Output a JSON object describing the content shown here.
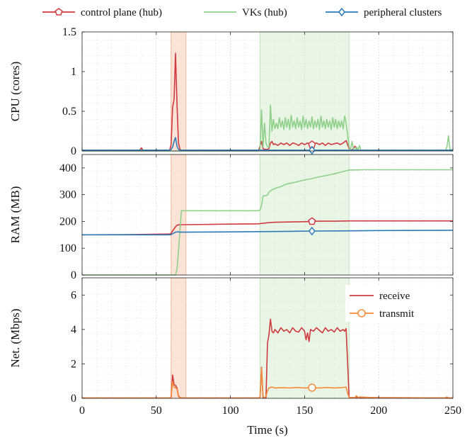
{
  "colors": {
    "control_plane": "#d0393f",
    "vks": "#8fd18a",
    "peripheral": "#2b7bb9",
    "receive": "#cf3a3f",
    "transmit": "#f48b3a",
    "band_orange": "#f7b08f",
    "band_green": "#bfe5b8"
  },
  "chart_data": [
    {
      "type": "line",
      "panel": "cpu",
      "ylabel": "CPU (cores)",
      "ylim": [
        0,
        1.5
      ],
      "yticks": [
        0,
        0.5,
        1,
        1.5
      ],
      "ytick_labels": [
        "0",
        "0.5",
        "1",
        "1.5"
      ],
      "xlim": [
        0,
        250
      ],
      "grid": true,
      "highlight_bands": [
        {
          "name": "orange",
          "x": [
            60,
            70
          ]
        },
        {
          "name": "green",
          "x": [
            120,
            180
          ]
        }
      ],
      "series": [
        {
          "name": "control plane (hub)",
          "marker": "pentagon",
          "marker_x": 155,
          "x": [
            0,
            39,
            40,
            41,
            59,
            60,
            61,
            62,
            63,
            64,
            65,
            66,
            67,
            68,
            70,
            100,
            119,
            120,
            121,
            122,
            123,
            124,
            125,
            126,
            127,
            128,
            129,
            130,
            132,
            134,
            136,
            138,
            140,
            142,
            144,
            146,
            148,
            150,
            152,
            154,
            156,
            158,
            160,
            162,
            164,
            166,
            168,
            170,
            172,
            174,
            176,
            178,
            179,
            180,
            182,
            184,
            186,
            200,
            250
          ],
          "y": [
            0.01,
            0.01,
            0.04,
            0.01,
            0.01,
            0.08,
            0.55,
            0.65,
            1.23,
            0.6,
            0.1,
            0.02,
            0.01,
            0.01,
            0.01,
            0.01,
            0.01,
            0.06,
            0.12,
            0.03,
            0.02,
            0.02,
            0.02,
            0.03,
            0.1,
            0.12,
            0.08,
            0.09,
            0.07,
            0.1,
            0.08,
            0.1,
            0.07,
            0.1,
            0.09,
            0.07,
            0.1,
            0.08,
            0.1,
            0.07,
            0.09,
            0.1,
            0.08,
            0.1,
            0.07,
            0.1,
            0.08,
            0.09,
            0.1,
            0.08,
            0.1,
            0.13,
            0.08,
            0.03,
            0.01,
            0.06,
            0.01,
            0.01,
            0.01
          ]
        },
        {
          "name": "VKs (hub)",
          "marker": "line",
          "x": [
            0,
            119,
            120,
            121,
            122,
            123,
            124,
            125,
            126,
            127,
            128,
            129,
            130,
            131,
            132,
            133,
            134,
            135,
            136,
            137,
            138,
            139,
            140,
            141,
            142,
            143,
            144,
            145,
            146,
            147,
            148,
            149,
            150,
            151,
            152,
            153,
            154,
            155,
            156,
            157,
            158,
            159,
            160,
            161,
            162,
            163,
            164,
            165,
            166,
            167,
            168,
            169,
            170,
            171,
            172,
            173,
            174,
            175,
            176,
            177,
            178,
            179,
            180,
            181,
            182,
            183,
            184,
            185,
            186,
            187,
            188,
            190,
            245,
            246,
            247,
            248,
            250
          ],
          "y": [
            0,
            0,
            0.02,
            0.52,
            0.05,
            0.35,
            0.1,
            0.05,
            0.05,
            0.58,
            0.25,
            0.4,
            0.28,
            0.35,
            0.28,
            0.42,
            0.3,
            0.38,
            0.27,
            0.42,
            0.3,
            0.4,
            0.27,
            0.45,
            0.3,
            0.38,
            0.28,
            0.42,
            0.3,
            0.38,
            0.27,
            0.44,
            0.3,
            0.4,
            0.28,
            0.38,
            0.3,
            0.43,
            0.28,
            0.38,
            0.3,
            0.4,
            0.27,
            0.44,
            0.3,
            0.38,
            0.28,
            0.4,
            0.3,
            0.38,
            0.27,
            0.42,
            0.3,
            0.4,
            0.28,
            0.38,
            0.3,
            0.38,
            0.28,
            0.44,
            0.35,
            0.2,
            0.05,
            0.02,
            0.12,
            0.02,
            0.01,
            0.05,
            0.01,
            0.07,
            0.01,
            0.01,
            0.01,
            0.05,
            0.19,
            0.02,
            0.01
          ]
        },
        {
          "name": "peripheral clusters",
          "marker": "diamond",
          "marker_x": 155,
          "x": [
            0,
            59,
            60,
            61,
            62,
            63,
            64,
            65,
            66,
            70,
            250
          ],
          "y": [
            0.01,
            0.01,
            0.02,
            0.05,
            0.12,
            0.17,
            0.06,
            0.02,
            0.01,
            0.01,
            0.01
          ]
        }
      ]
    },
    {
      "type": "line",
      "panel": "ram",
      "ylabel": "RAM (MB)",
      "ylim": [
        0,
        450
      ],
      "yticks": [
        0,
        100,
        200,
        300,
        400
      ],
      "ytick_labels": [
        "0",
        "100",
        "200",
        "300",
        "400"
      ],
      "xlim": [
        0,
        250
      ],
      "grid": true,
      "highlight_bands": [
        {
          "name": "orange",
          "x": [
            60,
            70
          ]
        },
        {
          "name": "green",
          "x": [
            120,
            180
          ]
        }
      ],
      "series": [
        {
          "name": "control plane (hub)",
          "marker": "pentagon",
          "marker_x": 155,
          "x": [
            0,
            30,
            59,
            60,
            61,
            62,
            63,
            64,
            66,
            70,
            100,
            119,
            120,
            125,
            130,
            140,
            150,
            155,
            160,
            170,
            180,
            200,
            250
          ],
          "y": [
            150,
            151,
            153,
            155,
            165,
            172,
            180,
            186,
            188,
            188,
            190,
            191,
            192,
            195,
            197,
            198,
            199,
            200,
            201,
            201,
            202,
            202,
            202
          ]
        },
        {
          "name": "VKs (hub)",
          "marker": "line",
          "x": [
            0,
            62,
            63,
            64,
            65,
            66,
            67,
            68,
            69,
            70,
            119,
            120,
            121,
            122,
            124,
            125,
            126,
            128,
            130,
            132,
            134,
            136,
            138,
            140,
            145,
            150,
            155,
            160,
            165,
            170,
            175,
            180,
            190,
            200,
            250
          ],
          "y": [
            0,
            0,
            0,
            20,
            90,
            165,
            240,
            240,
            240,
            240,
            240,
            243,
            258,
            295,
            297,
            298,
            310,
            318,
            323,
            327,
            330,
            335,
            340,
            342,
            348,
            355,
            360,
            367,
            372,
            378,
            385,
            392,
            393,
            393,
            393
          ]
        },
        {
          "name": "peripheral clusters",
          "marker": "diamond",
          "marker_x": 155,
          "x": [
            0,
            30,
            59,
            60,
            61,
            62,
            63,
            64,
            65,
            66,
            70,
            100,
            120,
            140,
            155,
            180,
            200,
            250
          ],
          "y": [
            150,
            150,
            150,
            151,
            154,
            157,
            160,
            161,
            161,
            160,
            160,
            161,
            162,
            163,
            164,
            165,
            166,
            167
          ]
        }
      ]
    },
    {
      "type": "line",
      "panel": "net",
      "ylabel": "Net. (Mbps)",
      "xlabel": "Time (s)",
      "ylim": [
        0,
        7
      ],
      "yticks": [
        0,
        2,
        4,
        6
      ],
      "ytick_labels": [
        "0",
        "2",
        "4",
        "6"
      ],
      "xlim": [
        0,
        250
      ],
      "xticks": [
        0,
        50,
        100,
        150,
        200,
        250
      ],
      "xtick_labels": [
        "0",
        "50",
        "100",
        "150",
        "200",
        "250"
      ],
      "grid": true,
      "legend_position": "top-right",
      "highlight_bands": [
        {
          "name": "orange",
          "x": [
            60,
            70
          ]
        },
        {
          "name": "green",
          "x": [
            120,
            180
          ]
        }
      ],
      "series": [
        {
          "name": "receive",
          "marker": "line",
          "x": [
            0,
            59,
            60,
            61,
            62,
            63,
            64,
            65,
            66,
            67,
            119,
            120,
            121,
            122,
            123,
            124,
            125,
            126,
            127,
            128,
            129,
            130,
            132,
            134,
            136,
            138,
            140,
            142,
            144,
            146,
            148,
            150,
            151,
            152,
            153,
            154,
            156,
            158,
            160,
            162,
            164,
            166,
            168,
            170,
            172,
            174,
            176,
            177,
            178,
            179,
            180,
            250
          ],
          "y": [
            0.02,
            0.02,
            0.05,
            1.35,
            0.8,
            0.75,
            0.6,
            0.15,
            0.05,
            0.02,
            0.02,
            0.05,
            1.8,
            0.05,
            0.02,
            0.05,
            3.2,
            3.7,
            4.6,
            3.9,
            3.8,
            4.0,
            3.8,
            4.1,
            3.9,
            4.0,
            3.8,
            4.1,
            3.9,
            3.85,
            4.1,
            3.9,
            3.4,
            3.8,
            3.3,
            4.0,
            3.9,
            4.1,
            3.95,
            3.8,
            4.1,
            3.9,
            4.0,
            3.85,
            4.1,
            3.9,
            4.0,
            3.9,
            4.05,
            2.1,
            0.05,
            0.02
          ]
        },
        {
          "name": "transmit",
          "marker": "circle",
          "marker_x": 155,
          "x": [
            0,
            59,
            60,
            61,
            62,
            63,
            64,
            65,
            66,
            67,
            119,
            120,
            121,
            122,
            123,
            124,
            125,
            126,
            128,
            130,
            135,
            140,
            145,
            150,
            155,
            160,
            165,
            170,
            175,
            178,
            179,
            180,
            184,
            185,
            186,
            187,
            200,
            245,
            246,
            247,
            250
          ],
          "y": [
            0.02,
            0.02,
            0.05,
            0.95,
            0.65,
            0.6,
            0.55,
            0.1,
            0.04,
            0.02,
            0.02,
            0.05,
            1.75,
            0.1,
            0.05,
            0.1,
            0.45,
            0.6,
            0.65,
            0.6,
            0.62,
            0.6,
            0.63,
            0.6,
            0.62,
            0.6,
            0.63,
            0.6,
            0.62,
            0.65,
            0.3,
            0.05,
            0.04,
            0.15,
            0.04,
            0.08,
            0.03,
            0.03,
            0.08,
            0.03,
            0.03
          ]
        }
      ]
    }
  ]
}
